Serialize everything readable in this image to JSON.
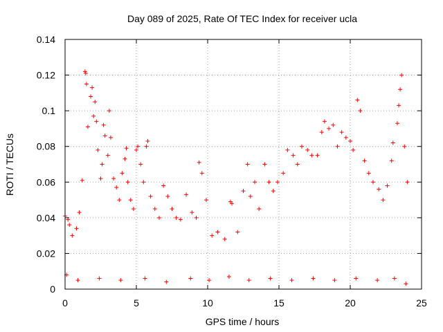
{
  "chart_data": {
    "type": "scatter",
    "title": "Day 089 of 2025, Rate Of TEC Index for receiver ucla",
    "xlabel": "GPS time / hours",
    "ylabel": "ROTI / TECUs",
    "xlim": [
      0,
      25
    ],
    "ylim": [
      0,
      0.14
    ],
    "x_ticks": [
      {
        "value": 0,
        "label": "0"
      },
      {
        "value": 5,
        "label": "5"
      },
      {
        "value": 10,
        "label": "10"
      },
      {
        "value": 15,
        "label": "15"
      },
      {
        "value": 20,
        "label": "20"
      },
      {
        "value": 25,
        "label": "25"
      }
    ],
    "y_ticks": [
      {
        "value": 0,
        "label": "0"
      },
      {
        "value": 0.02,
        "label": "0.02"
      },
      {
        "value": 0.04,
        "label": "0.04"
      },
      {
        "value": 0.06,
        "label": "0.06"
      },
      {
        "value": 0.08,
        "label": "0.08"
      },
      {
        "value": 0.1,
        "label": "0.1"
      },
      {
        "value": 0.12,
        "label": "0.12"
      },
      {
        "value": 0.14,
        "label": "0.14"
      }
    ],
    "grid": true,
    "marker": "plus",
    "series_color": "#ff0000",
    "series": [
      {
        "name": "ROTI",
        "points": [
          [
            0.0,
            0.041
          ],
          [
            0.2,
            0.039
          ],
          [
            0.3,
            0.036
          ],
          [
            0.5,
            0.03
          ],
          [
            0.8,
            0.034
          ],
          [
            1.0,
            0.043
          ],
          [
            1.2,
            0.061
          ],
          [
            1.4,
            0.122
          ],
          [
            1.45,
            0.121
          ],
          [
            1.5,
            0.115
          ],
          [
            1.6,
            0.091
          ],
          [
            1.8,
            0.108
          ],
          [
            1.9,
            0.113
          ],
          [
            2.0,
            0.097
          ],
          [
            2.1,
            0.105
          ],
          [
            2.2,
            0.094
          ],
          [
            2.3,
            0.078
          ],
          [
            2.5,
            0.062
          ],
          [
            2.6,
            0.07
          ],
          [
            2.7,
            0.092
          ],
          [
            2.8,
            0.086
          ],
          [
            3.0,
            0.075
          ],
          [
            3.1,
            0.1
          ],
          [
            3.2,
            0.085
          ],
          [
            3.4,
            0.062
          ],
          [
            3.6,
            0.057
          ],
          [
            3.8,
            0.05
          ],
          [
            4.0,
            0.065
          ],
          [
            4.2,
            0.073
          ],
          [
            4.3,
            0.079
          ],
          [
            4.4,
            0.06
          ],
          [
            4.6,
            0.05
          ],
          [
            4.8,
            0.045
          ],
          [
            5.0,
            0.078
          ],
          [
            5.1,
            0.08
          ],
          [
            5.3,
            0.07
          ],
          [
            5.5,
            0.06
          ],
          [
            5.7,
            0.08
          ],
          [
            5.8,
            0.083
          ],
          [
            6.0,
            0.052
          ],
          [
            6.3,
            0.045
          ],
          [
            6.6,
            0.04
          ],
          [
            6.9,
            0.058
          ],
          [
            7.2,
            0.052
          ],
          [
            7.5,
            0.045
          ],
          [
            7.8,
            0.04
          ],
          [
            8.1,
            0.039
          ],
          [
            8.5,
            0.053
          ],
          [
            8.9,
            0.043
          ],
          [
            9.2,
            0.04
          ],
          [
            9.4,
            0.071
          ],
          [
            9.6,
            0.065
          ],
          [
            9.9,
            0.05
          ],
          [
            10.3,
            0.03
          ],
          [
            10.7,
            0.032
          ],
          [
            11.2,
            0.028
          ],
          [
            11.6,
            0.049
          ],
          [
            11.7,
            0.048
          ],
          [
            12.1,
            0.032
          ],
          [
            12.5,
            0.055
          ],
          [
            12.8,
            0.07
          ],
          [
            13.0,
            0.052
          ],
          [
            13.3,
            0.06
          ],
          [
            13.6,
            0.045
          ],
          [
            14.0,
            0.07
          ],
          [
            14.3,
            0.06
          ],
          [
            14.6,
            0.055
          ],
          [
            14.9,
            0.06
          ],
          [
            15.3,
            0.065
          ],
          [
            15.6,
            0.078
          ],
          [
            16.0,
            0.075
          ],
          [
            16.3,
            0.07
          ],
          [
            16.6,
            0.08
          ],
          [
            17.0,
            0.078
          ],
          [
            17.3,
            0.075
          ],
          [
            17.7,
            0.075
          ],
          [
            18.0,
            0.088
          ],
          [
            18.2,
            0.094
          ],
          [
            18.5,
            0.09
          ],
          [
            18.8,
            0.092
          ],
          [
            19.1,
            0.08
          ],
          [
            19.4,
            0.088
          ],
          [
            19.7,
            0.085
          ],
          [
            20.0,
            0.083
          ],
          [
            20.2,
            0.078
          ],
          [
            20.5,
            0.106
          ],
          [
            20.7,
            0.1
          ],
          [
            21.0,
            0.072
          ],
          [
            21.3,
            0.065
          ],
          [
            21.6,
            0.06
          ],
          [
            22.0,
            0.056
          ],
          [
            22.3,
            0.05
          ],
          [
            22.6,
            0.058
          ],
          [
            22.9,
            0.072
          ],
          [
            23.0,
            0.082
          ],
          [
            23.3,
            0.093
          ],
          [
            23.4,
            0.103
          ],
          [
            23.5,
            0.112
          ],
          [
            23.6,
            0.12
          ],
          [
            23.8,
            0.08
          ],
          [
            24.0,
            0.06
          ],
          [
            0.1,
            0.008
          ],
          [
            0.9,
            0.005
          ],
          [
            2.4,
            0.006
          ],
          [
            3.9,
            0.005
          ],
          [
            5.6,
            0.006
          ],
          [
            7.1,
            0.004
          ],
          [
            8.8,
            0.006
          ],
          [
            10.1,
            0.005
          ],
          [
            11.5,
            0.007
          ],
          [
            12.9,
            0.005
          ],
          [
            14.4,
            0.006
          ],
          [
            15.9,
            0.005
          ],
          [
            17.4,
            0.006
          ],
          [
            18.9,
            0.005
          ],
          [
            20.4,
            0.006
          ],
          [
            21.9,
            0.005
          ],
          [
            23.1,
            0.006
          ],
          [
            23.9,
            0.003
          ]
        ]
      }
    ]
  }
}
